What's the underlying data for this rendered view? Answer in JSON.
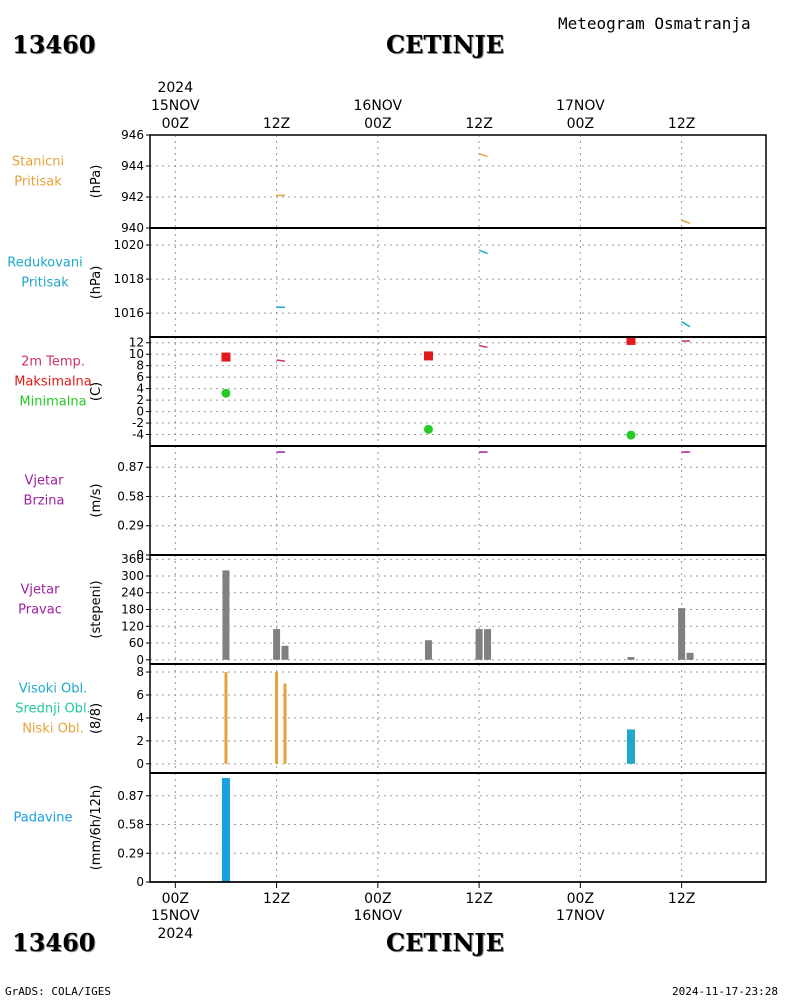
{
  "header": {
    "title": "Meteogram Osmatranja",
    "station_id": "13460",
    "station_name": "CETINJE"
  },
  "footer": {
    "left": "GrADS: COLA/IGES",
    "right": "2024-11-17-23:28"
  },
  "time_axis": {
    "top_year": "2024",
    "bottom_year": "2024",
    "ticks": [
      {
        "hour": 0,
        "label": "00Z",
        "date": "15NOV"
      },
      {
        "hour": 12,
        "label": "12Z",
        "date": ""
      },
      {
        "hour": 24,
        "label": "00Z",
        "date": "16NOV"
      },
      {
        "hour": 36,
        "label": "12Z",
        "date": ""
      },
      {
        "hour": 48,
        "label": "00Z",
        "date": "17NOV"
      },
      {
        "hour": 60,
        "label": "12Z",
        "date": ""
      }
    ],
    "range_hours": [
      -3,
      70
    ]
  },
  "colors": {
    "station_pressure": "#e6a23a",
    "reduced_pressure": "#1fa8c8",
    "tmax": "#e21a1a",
    "tmin": "#22cc22",
    "wind": "#a020a0",
    "wind_dir": "#808080",
    "cloud_high": "#1fa8c8",
    "cloud_mid": "#1ec8a0",
    "cloud_low": "#e6a23a",
    "precip": "#1aa0e0",
    "temp_line": "#cc3366"
  },
  "chart_data": [
    {
      "type": "line",
      "name": "station-pressure",
      "labels": [
        "Stanicni",
        "Pritisak"
      ],
      "ylabel": "(hPa)",
      "ylim": [
        940,
        946
      ],
      "yticks": [
        "946",
        "944",
        "942",
        "940"
      ],
      "ytick_values": [
        946,
        944,
        942,
        940
      ],
      "segments": [
        [
          [
            12,
            942.1
          ],
          [
            13,
            942.1
          ]
        ],
        [
          [
            36,
            944.8
          ],
          [
            37,
            944.6
          ]
        ],
        [
          [
            60,
            940.5
          ],
          [
            61,
            940.3
          ]
        ]
      ]
    },
    {
      "type": "line",
      "name": "reduced-pressure",
      "labels": [
        "Redukovani",
        "Pritisak"
      ],
      "ylabel": "(hPa)",
      "ylim": [
        1014.6,
        1021.0
      ],
      "yticks": [
        "1020",
        "1018",
        "1016"
      ],
      "ytick_values": [
        1020,
        1018,
        1016
      ],
      "segments": [
        [
          [
            12,
            1016.35
          ],
          [
            13,
            1016.35
          ]
        ],
        [
          [
            36,
            1019.7
          ],
          [
            37,
            1019.5
          ]
        ],
        [
          [
            60,
            1015.5
          ],
          [
            61,
            1015.2
          ]
        ]
      ]
    },
    {
      "type": "scatter",
      "name": "temperature",
      "labels": [
        "2m Temp.",
        "Maksimalna",
        "Minimalna"
      ],
      "ylabel": "(C)",
      "ylim": [
        -6,
        13
      ],
      "yticks": [
        "12",
        "10",
        "8",
        "6",
        "4",
        "2",
        "0",
        "-2",
        "-4"
      ],
      "ytick_values": [
        12,
        10,
        8,
        6,
        4,
        2,
        0,
        -2,
        -4
      ],
      "tmax": [
        {
          "x": 6,
          "y": 9.5
        },
        {
          "x": 30,
          "y": 9.7
        },
        {
          "x": 54,
          "y": 12.4
        }
      ],
      "tmin": [
        {
          "x": 6,
          "y": 3.2
        },
        {
          "x": 30,
          "y": -3.1
        },
        {
          "x": 54,
          "y": -4.1
        }
      ],
      "segments": [
        [
          [
            12,
            9.0
          ],
          [
            13,
            8.8
          ]
        ],
        [
          [
            36,
            11.5
          ],
          [
            37,
            11.2
          ]
        ],
        [
          [
            60,
            12.3
          ],
          [
            61,
            12.3
          ]
        ]
      ]
    },
    {
      "type": "line",
      "name": "wind-speed",
      "labels": [
        "Vjetar",
        "Brzina"
      ],
      "ylabel": "(m/s)",
      "ylim": [
        0,
        1.08
      ],
      "yticks": [
        "0.87",
        "0.58",
        "0.29",
        "0"
      ],
      "ytick_values": [
        0.87,
        0.58,
        0.29,
        0
      ],
      "segments": [
        [
          [
            12,
            1.02
          ],
          [
            13,
            1.02
          ]
        ],
        [
          [
            36,
            1.02
          ],
          [
            37,
            1.02
          ]
        ],
        [
          [
            60,
            1.02
          ],
          [
            61,
            1.02
          ]
        ]
      ]
    },
    {
      "type": "bar",
      "name": "wind-direction",
      "labels": [
        "Vjetar",
        "Pravac"
      ],
      "ylabel": "(stepeni)",
      "ylim": [
        -15,
        375
      ],
      "yticks": [
        "360",
        "300",
        "240",
        "180",
        "120",
        "60",
        "0"
      ],
      "ytick_values": [
        360,
        300,
        240,
        180,
        120,
        60,
        0
      ],
      "bars": [
        {
          "x": 6,
          "value": 320
        },
        {
          "x": 12,
          "value": 110
        },
        {
          "x": 13,
          "value": 50
        },
        {
          "x": 30,
          "value": 70
        },
        {
          "x": 36,
          "value": 110
        },
        {
          "x": 37,
          "value": 110
        },
        {
          "x": 54,
          "value": 10
        },
        {
          "x": 60,
          "value": 185
        },
        {
          "x": 61,
          "value": 25
        }
      ]
    },
    {
      "type": "bar",
      "name": "cloud-cover",
      "labels": [
        "Visoki Obl.",
        "Srednji Obl.",
        "Niski Obl."
      ],
      "ylabel": "(8/8)",
      "ylim": [
        -0.8,
        8.7
      ],
      "yticks": [
        "8",
        "6",
        "4",
        "2",
        "0"
      ],
      "ytick_values": [
        8,
        6,
        4,
        2,
        0
      ],
      "low": [
        {
          "x": 6,
          "value": 8
        },
        {
          "x": 12,
          "value": 8
        },
        {
          "x": 13,
          "value": 7
        }
      ],
      "high": [
        {
          "x": 54,
          "value": 3
        }
      ]
    },
    {
      "type": "bar",
      "name": "precipitation",
      "labels": [
        "Padavine"
      ],
      "ylabel": "(mm/6h/12h)",
      "ylim": [
        0,
        1.1
      ],
      "yticks": [
        "0.87",
        "0.58",
        "0.29",
        "0"
      ],
      "ytick_values": [
        0.87,
        0.58,
        0.29,
        0
      ],
      "bars": [
        {
          "x": 6,
          "value": 1.05
        }
      ]
    }
  ]
}
